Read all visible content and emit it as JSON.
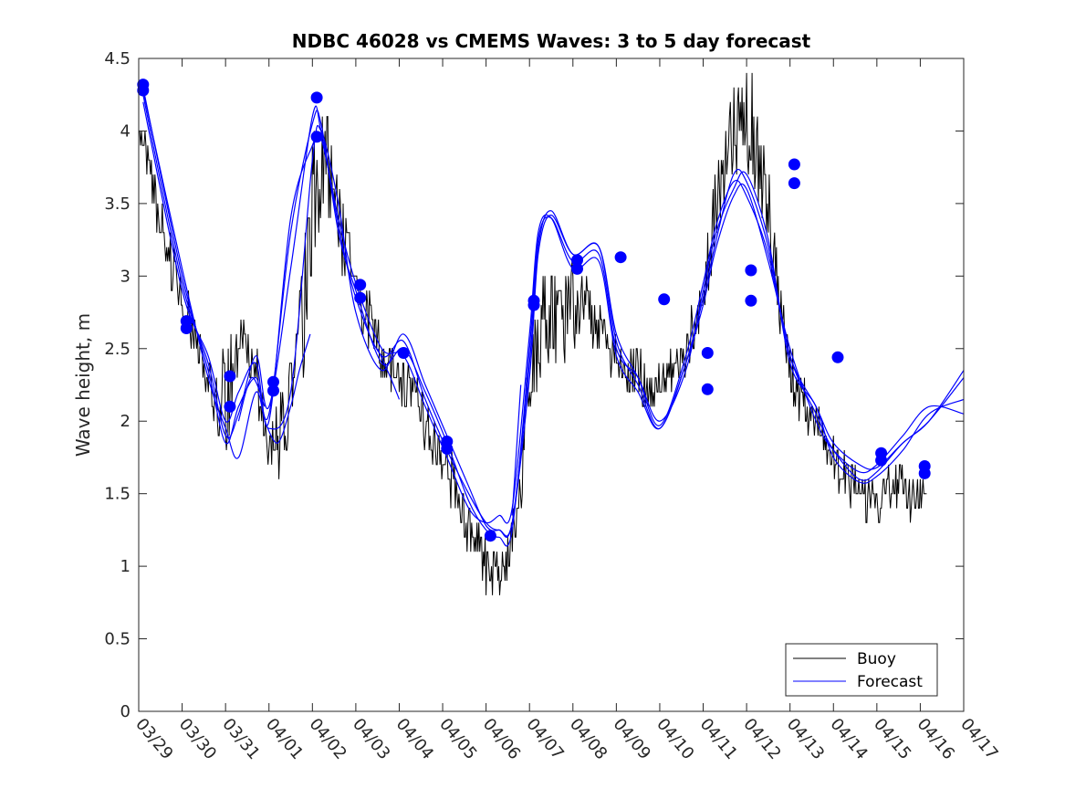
{
  "chart_data": {
    "type": "line",
    "title": "NDBC 46028 vs CMEMS Waves: 3 to 5 day forecast",
    "xlabel": "",
    "ylabel": "Wave height, m",
    "xlim": [
      0,
      19
    ],
    "ylim": [
      0,
      4.5
    ],
    "x_ticks": [
      0,
      1,
      2,
      3,
      4,
      5,
      6,
      7,
      8,
      9,
      10,
      11,
      12,
      13,
      14,
      15,
      16,
      17,
      18,
      19
    ],
    "x_tick_labels": [
      "03/29",
      "03/30",
      "03/31",
      "04/01",
      "04/02",
      "04/03",
      "04/04",
      "04/05",
      "04/06",
      "04/07",
      "04/08",
      "04/09",
      "04/10",
      "04/11",
      "04/12",
      "04/13",
      "04/14",
      "04/15",
      "04/16",
      "04/17"
    ],
    "y_ticks": [
      0,
      0.5,
      1,
      1.5,
      2,
      2.5,
      3,
      3.5,
      4,
      4.5
    ],
    "y_tick_labels": [
      "0",
      "0.5",
      "1",
      "1.5",
      "2",
      "2.5",
      "3",
      "3.5",
      "4",
      "4.5"
    ],
    "grid": false,
    "legend": {
      "position": "bottom-right",
      "entries": [
        "Buoy",
        "Forecast"
      ]
    },
    "colors": {
      "buoy": "#000000",
      "forecast": "#0000ff",
      "axis": "#262626"
    },
    "buoy_envelope": {
      "name": "Buoy",
      "x": [
        0.0,
        0.25,
        0.5,
        0.75,
        1.0,
        1.25,
        1.5,
        1.75,
        2.0,
        2.2,
        2.5,
        2.8,
        3.0,
        3.3,
        3.6,
        3.85,
        4.0,
        4.15,
        4.3,
        4.5,
        4.75,
        5.0,
        5.3,
        5.6,
        6.0,
        6.3,
        6.6,
        7.0,
        7.3,
        7.6,
        7.9,
        8.2,
        8.5,
        8.8,
        9.0,
        9.2,
        9.4,
        9.7,
        10.0,
        10.3,
        10.6,
        10.9,
        11.2,
        11.5,
        11.8,
        12.0,
        12.3,
        12.6,
        12.9,
        13.2,
        13.5,
        13.8,
        14.0,
        14.2,
        14.4,
        14.6,
        14.8,
        15.0,
        15.2,
        15.5,
        15.8,
        16.0,
        16.2,
        16.5,
        16.8,
        17.0,
        17.3,
        17.6,
        17.85,
        18.0,
        18.15
      ],
      "high": [
        4.2,
        3.9,
        3.5,
        3.3,
        3.0,
        2.8,
        2.6,
        2.3,
        2.6,
        2.9,
        2.7,
        2.4,
        2.0,
        2.3,
        2.6,
        3.4,
        4.0,
        4.2,
        4.3,
        3.9,
        3.5,
        3.1,
        2.9,
        2.6,
        2.5,
        2.4,
        2.2,
        1.9,
        1.7,
        1.5,
        1.3,
        1.1,
        1.2,
        2.0,
        2.6,
        2.9,
        3.1,
        3.0,
        3.2,
        3.0,
        2.8,
        2.7,
        2.6,
        2.5,
        2.3,
        2.4,
        2.5,
        2.6,
        3.0,
        3.6,
        4.0,
        4.5,
        4.5,
        4.3,
        4.0,
        3.5,
        3.0,
        2.6,
        2.4,
        2.2,
        2.0,
        1.9,
        1.8,
        1.7,
        1.6,
        1.6,
        1.7,
        1.7,
        1.6,
        1.65,
        1.6
      ],
      "low": [
        3.9,
        3.6,
        3.2,
        2.9,
        2.7,
        2.5,
        2.2,
        1.9,
        1.7,
        2.2,
        2.4,
        2.0,
        1.6,
        1.6,
        1.9,
        2.3,
        2.9,
        3.1,
        3.4,
        3.2,
        2.9,
        2.7,
        2.5,
        2.3,
        2.1,
        2.0,
        1.8,
        1.6,
        1.3,
        1.1,
        0.8,
        0.8,
        0.8,
        1.4,
        1.9,
        2.2,
        2.4,
        2.2,
        2.5,
        2.5,
        2.4,
        2.3,
        2.2,
        2.1,
        2.0,
        2.0,
        2.2,
        2.2,
        2.6,
        3.0,
        3.5,
        3.7,
        3.7,
        3.6,
        3.3,
        2.9,
        2.5,
        2.2,
        2.0,
        1.9,
        1.7,
        1.6,
        1.5,
        1.4,
        1.3,
        1.3,
        1.4,
        1.35,
        1.3,
        1.4,
        1.5
      ]
    },
    "forecast_series": [
      {
        "name": "Forecast",
        "x": [
          0.1,
          1.0,
          1.6,
          2.0,
          2.3,
          2.7,
          3.0,
          3.5,
          4.0,
          4.2,
          4.6,
          5.0,
          5.6,
          6.1,
          6.6,
          7.1,
          7.6,
          8.0,
          8.3,
          8.6,
          9.0,
          9.2,
          9.5,
          10.0,
          10.6,
          11.0,
          11.5,
          12.0,
          12.6,
          13.0,
          13.3,
          13.7,
          14.0,
          14.5,
          15.0,
          15.6,
          16.0,
          16.6,
          17.0,
          17.6,
          18.2,
          19.0
        ],
        "y": [
          4.25,
          2.95,
          2.4,
          1.9,
          2.05,
          2.45,
          2.1,
          3.05,
          4.1,
          4.0,
          3.35,
          2.85,
          2.45,
          2.55,
          2.15,
          1.8,
          1.5,
          1.3,
          1.25,
          1.3,
          2.4,
          3.2,
          3.45,
          3.15,
          3.2,
          2.55,
          2.25,
          1.95,
          2.4,
          2.85,
          3.25,
          3.7,
          3.65,
          3.2,
          2.45,
          2.05,
          1.8,
          1.6,
          1.65,
          1.85,
          2.0,
          2.35
        ]
      },
      {
        "name": "Forecast",
        "x": [
          0.1,
          1.0,
          1.6,
          2.0,
          2.3,
          2.7,
          3.0,
          3.5,
          4.0,
          4.2,
          4.6,
          5.0,
          5.6,
          6.1,
          6.6,
          7.1,
          7.6,
          8.0,
          8.3,
          8.6,
          9.0,
          9.2,
          9.5,
          10.0,
          10.6,
          11.0,
          11.5,
          12.0,
          12.6,
          13.0,
          13.3,
          13.7,
          14.0,
          14.5,
          15.0,
          15.6,
          16.0,
          16.6,
          17.0,
          17.6,
          18.2,
          19.0
        ],
        "y": [
          4.3,
          3.0,
          2.35,
          1.85,
          2.1,
          2.3,
          2.05,
          3.3,
          4.05,
          4.05,
          3.3,
          2.9,
          2.4,
          2.5,
          2.2,
          1.85,
          1.45,
          1.25,
          1.2,
          1.25,
          2.5,
          3.25,
          3.4,
          3.1,
          3.15,
          2.5,
          2.3,
          2.0,
          2.35,
          2.9,
          3.3,
          3.6,
          3.7,
          3.25,
          2.4,
          2.1,
          1.75,
          1.58,
          1.62,
          1.8,
          2.05,
          2.15
        ]
      },
      {
        "name": "Forecast",
        "x": [
          0.1,
          1.0,
          1.6,
          2.0,
          2.3,
          2.7,
          3.0,
          3.5,
          4.0,
          4.2,
          4.6,
          5.0,
          5.6,
          6.1,
          6.6,
          7.1,
          7.6,
          8.0,
          8.3,
          8.6,
          9.0,
          9.2,
          9.5,
          10.0,
          10.6,
          11.0,
          11.5,
          12.0,
          12.6,
          13.0,
          13.3,
          13.7,
          14.0,
          14.5,
          15.0,
          15.6,
          16.0,
          16.6,
          17.0,
          17.6,
          18.2,
          19.0
        ],
        "y": [
          4.2,
          2.9,
          2.45,
          2.0,
          2.2,
          2.4,
          2.0,
          3.4,
          3.9,
          3.95,
          3.4,
          2.95,
          2.5,
          2.45,
          2.1,
          1.75,
          1.4,
          1.3,
          1.35,
          1.4,
          2.6,
          3.3,
          3.4,
          3.05,
          3.1,
          2.45,
          2.2,
          1.95,
          2.4,
          2.8,
          3.2,
          3.55,
          3.6,
          3.1,
          2.5,
          2.0,
          1.8,
          1.65,
          1.7,
          1.9,
          2.1,
          2.05
        ]
      },
      {
        "name": "Forecast",
        "x": [
          0.1,
          1.0,
          1.6,
          2.0,
          2.3,
          2.7,
          3.0,
          3.5,
          4.0,
          4.2,
          4.6,
          5.0,
          5.6,
          6.1,
          6.6,
          7.1,
          7.6,
          8.0,
          8.3,
          8.6,
          9.0,
          9.2,
          9.5,
          10.0,
          10.6,
          11.0,
          11.5,
          12.0,
          12.6,
          13.0,
          13.3,
          13.7,
          14.0,
          14.5,
          15.0,
          15.6,
          16.0,
          16.6,
          17.0,
          17.6,
          18.2,
          19.0
        ],
        "y": [
          4.28,
          3.05,
          2.3,
          1.95,
          1.75,
          2.2,
          1.95,
          2.2,
          3.8,
          4.0,
          3.5,
          2.75,
          2.35,
          2.6,
          2.25,
          1.9,
          1.55,
          1.28,
          1.25,
          1.3,
          2.3,
          3.15,
          3.42,
          3.15,
          3.2,
          2.6,
          2.3,
          1.97,
          2.45,
          2.95,
          3.35,
          3.65,
          3.55,
          3.15,
          2.45,
          2.1,
          1.85,
          1.7,
          1.68,
          1.85,
          2.0,
          2.3
        ]
      }
    ],
    "forecast_segments": [
      {
        "x": [
          2.9,
          3.2,
          3.5,
          3.7,
          3.95
        ],
        "y": [
          2.0,
          1.85,
          2.1,
          2.35,
          2.6
        ]
      },
      {
        "x": [
          2.3,
          2.6,
          2.9
        ],
        "y": [
          2.0,
          2.3,
          2.1
        ]
      },
      {
        "x": [
          5.5,
          5.8,
          6.0
        ],
        "y": [
          2.5,
          2.3,
          2.15
        ]
      },
      {
        "x": [
          8.6,
          8.8
        ],
        "y": [
          1.35,
          2.25
        ]
      }
    ],
    "markers": {
      "name": "Forecast points",
      "x": [
        0.1,
        0.1,
        1.1,
        1.1,
        2.1,
        2.1,
        3.1,
        3.1,
        4.1,
        4.1,
        5.1,
        5.1,
        6.1,
        7.1,
        7.1,
        8.1,
        9.1,
        9.1,
        10.1,
        10.1,
        11.1,
        12.1,
        13.1,
        13.1,
        14.1,
        14.1,
        15.1,
        15.1,
        16.1,
        17.1,
        17.1,
        18.1,
        18.1
      ],
      "y": [
        4.32,
        4.28,
        2.69,
        2.64,
        2.31,
        2.1,
        2.27,
        2.21,
        4.23,
        3.96,
        2.94,
        2.85,
        2.47,
        1.86,
        1.81,
        1.21,
        2.83,
        2.8,
        3.11,
        3.05,
        3.13,
        2.84,
        2.47,
        2.22,
        3.04,
        2.83,
        3.77,
        3.64,
        2.44,
        1.78,
        1.73,
        1.69,
        1.64
      ]
    }
  }
}
